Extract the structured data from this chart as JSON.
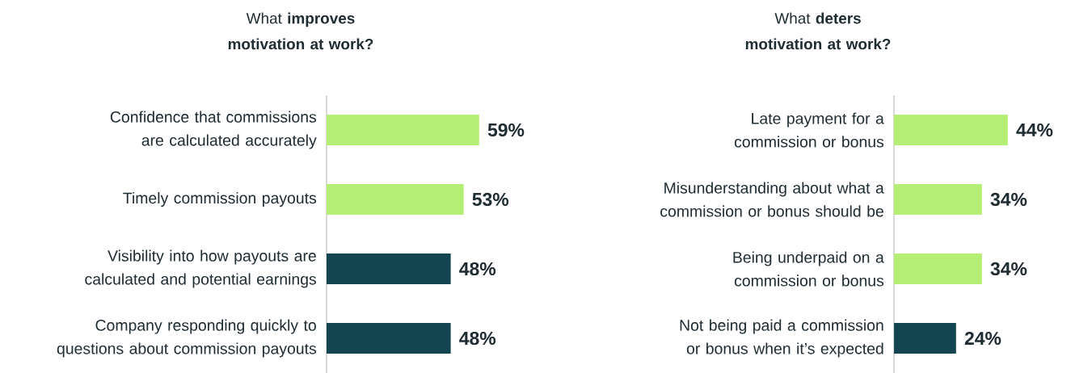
{
  "chart_data": [
    {
      "type": "bar",
      "orientation": "horizontal",
      "title": "What **improves motivation at work?**",
      "categories": [
        "Confidence that commissions are calculated accurately",
        "Timely commission payouts",
        "Visibility into how payouts are calculated and potential earnings",
        "Company responding quickly to questions about commission payouts"
      ],
      "values": [
        59,
        53,
        48,
        48
      ],
      "value_labels": [
        "59%",
        "53%",
        "48%",
        "48%"
      ],
      "colors": [
        "#b5ee74",
        "#b5ee74",
        "#134550",
        "#134550"
      ]
    },
    {
      "type": "bar",
      "orientation": "horizontal",
      "title": "What **deters motivation at work?**",
      "categories": [
        "Late payment for a commission or bonus",
        "Misunderstanding  about what a commission or bonus should be",
        "Being underpaid on a commission or bonus",
        "Not being paid a commission or bonus when it’s expected"
      ],
      "values": [
        44,
        34,
        34,
        24
      ],
      "value_labels": [
        "44%",
        "34%",
        "34%",
        "24%"
      ],
      "colors": [
        "#b5ee74",
        "#b5ee74",
        "#b5ee74",
        "#134550"
      ]
    }
  ]
}
